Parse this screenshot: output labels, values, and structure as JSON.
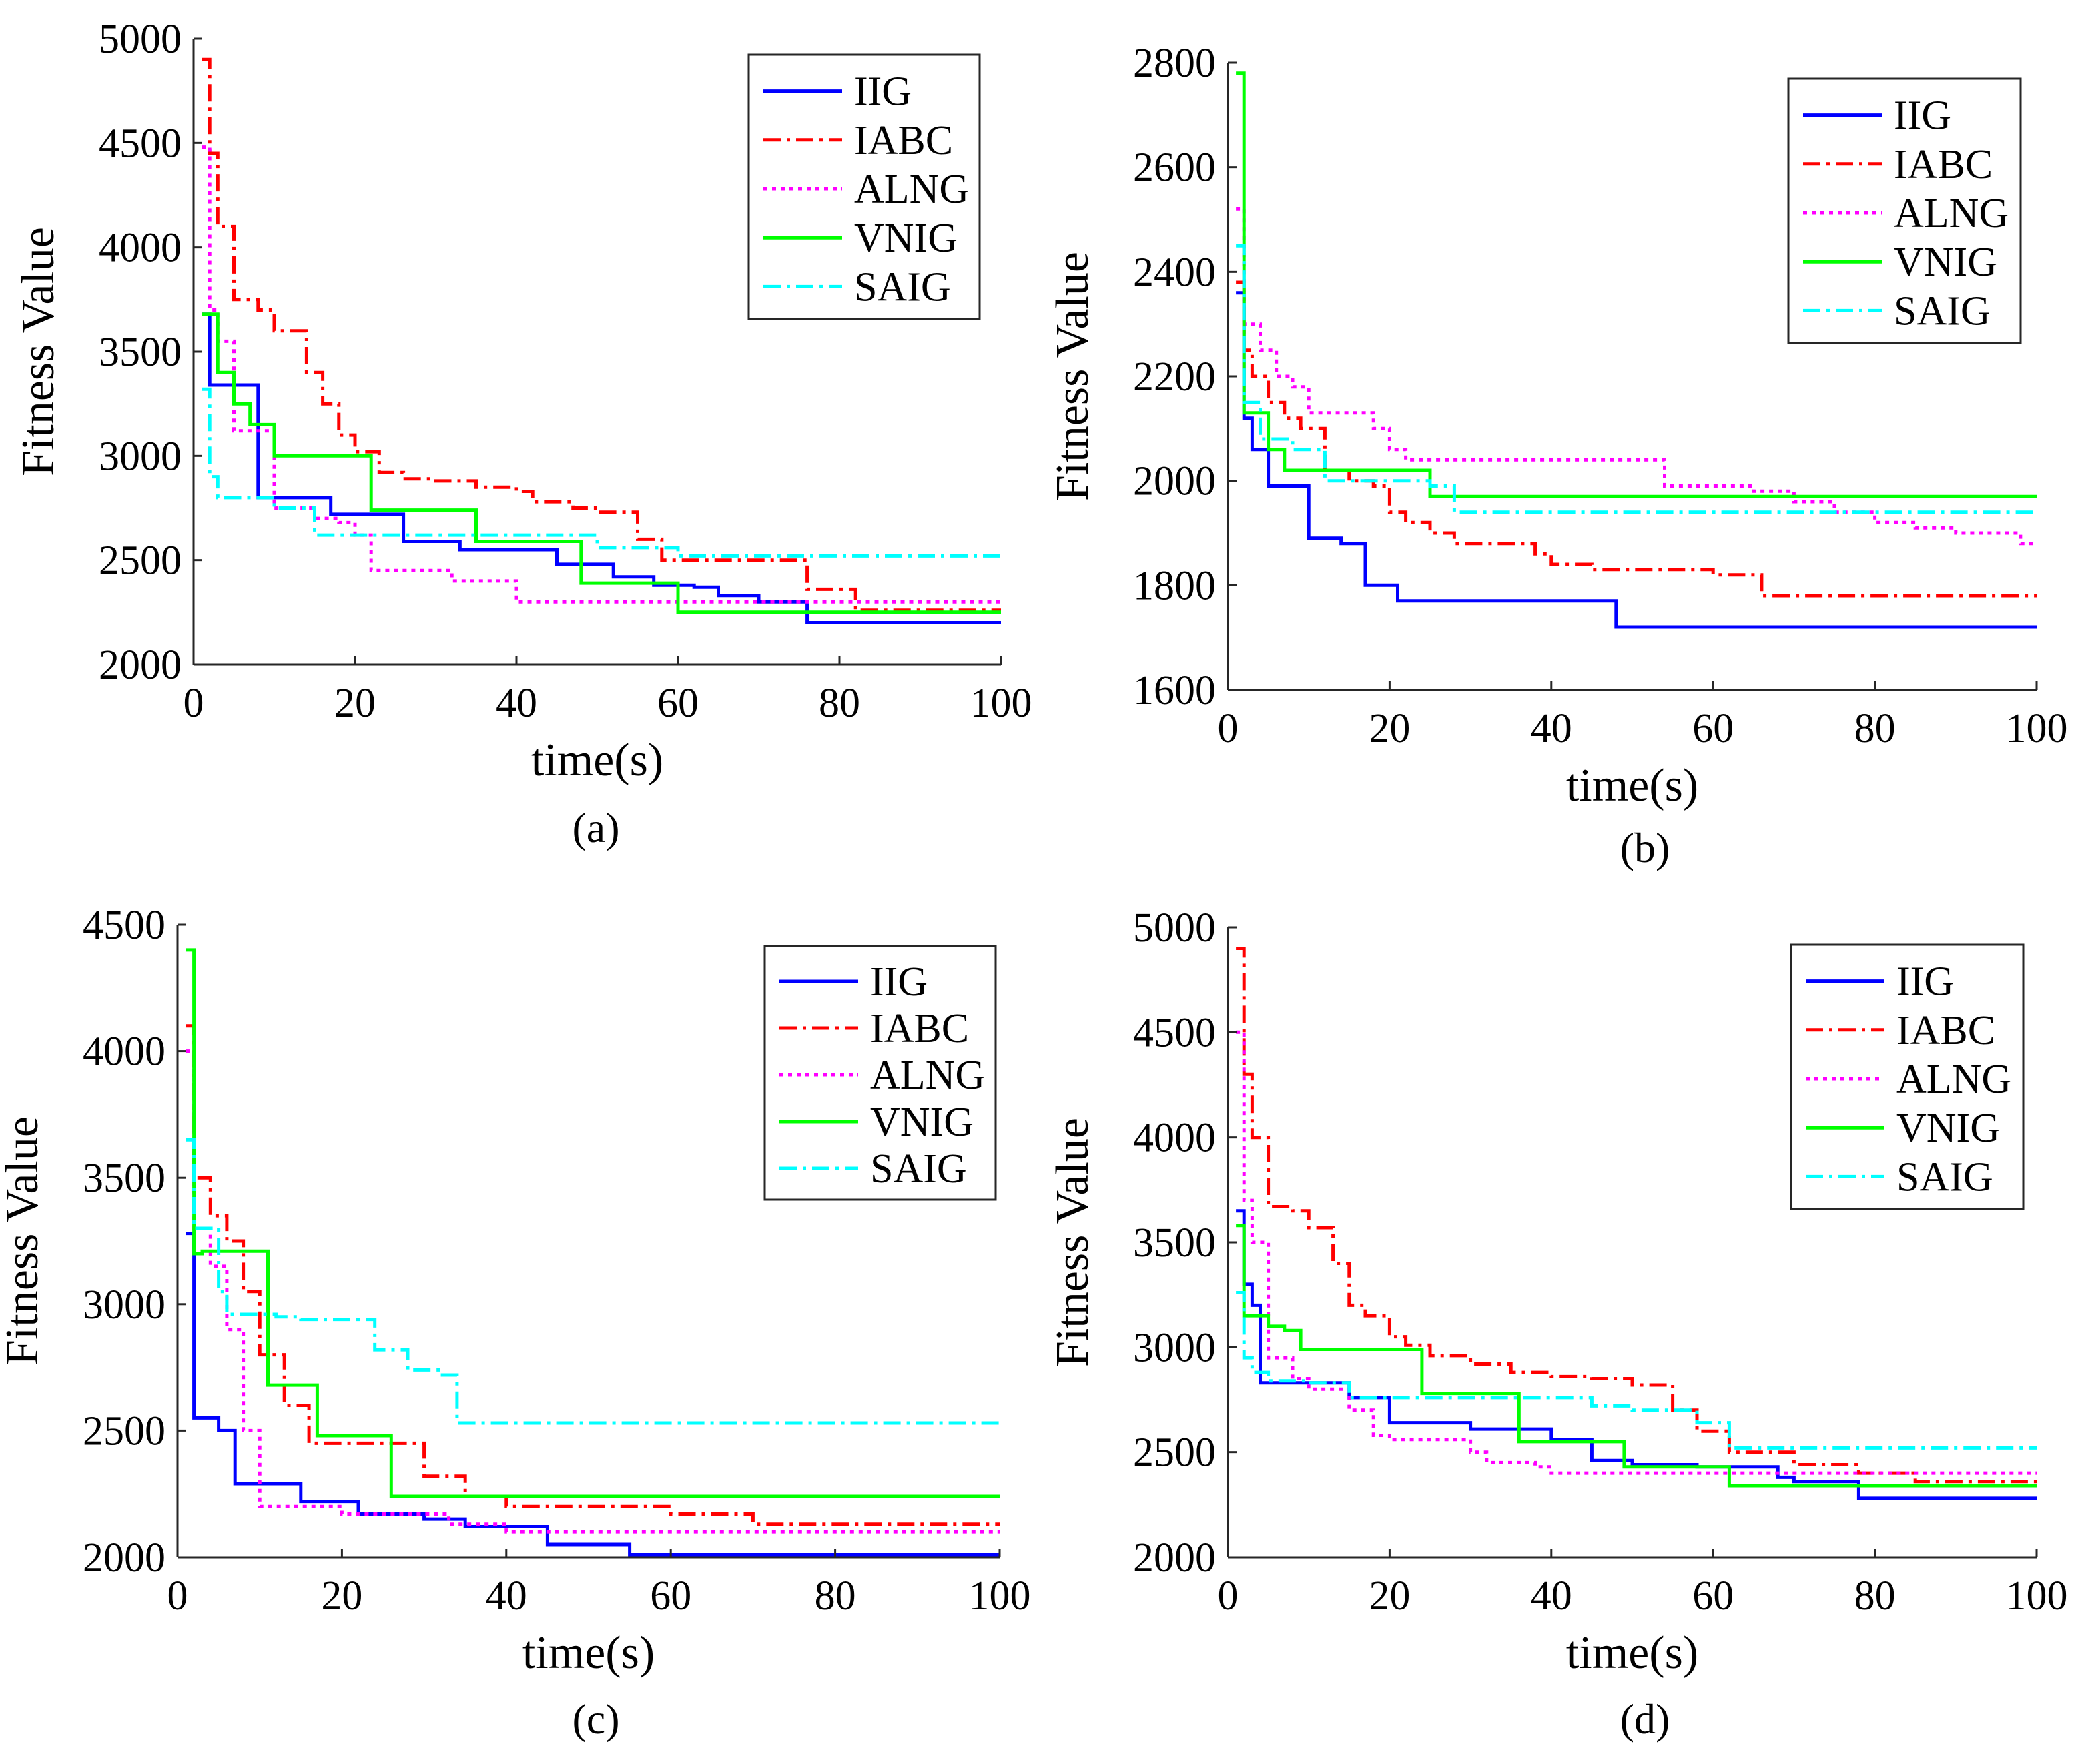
{
  "legend_labels": [
    "IIG",
    "IABC",
    "ALNG",
    "VNIG",
    "SAIG"
  ],
  "series_colors": {
    "IIG": "#0000ff",
    "IABC": "#ff0000",
    "ALNG": "#ff00ff",
    "VNIG": "#00ff00",
    "SAIG": "#00ffff"
  },
  "series_styles": {
    "IIG": "solid",
    "IABC": "dash-dot",
    "ALNG": "dotted",
    "VNIG": "solid",
    "SAIG": "dash-dot"
  },
  "chart_data": [
    {
      "type": "line",
      "panel_label": "(a)",
      "xlabel": "time(s)",
      "ylabel": "Fitness Value",
      "xlim": [
        0,
        100
      ],
      "ylim": [
        2000,
        5000
      ],
      "xticks": [
        0,
        20,
        40,
        60,
        80,
        100
      ],
      "yticks": [
        2000,
        2500,
        3000,
        3500,
        4000,
        4500,
        5000
      ],
      "legend": "top-right",
      "series": [
        {
          "name": "IIG",
          "x": [
            1,
            2,
            6,
            8,
            14,
            17,
            25,
            26,
            30,
            33,
            40,
            45,
            52,
            57,
            62,
            65,
            70,
            76,
            100
          ],
          "y": [
            3680,
            3340,
            3340,
            2800,
            2800,
            2720,
            2720,
            2590,
            2590,
            2550,
            2550,
            2480,
            2420,
            2380,
            2370,
            2330,
            2300,
            2200,
            2200
          ]
        },
        {
          "name": "IABC",
          "x": [
            1,
            2,
            3,
            5,
            8,
            10,
            14,
            16,
            18,
            20,
            23,
            26,
            30,
            35,
            40,
            42,
            47,
            50,
            55,
            58,
            61,
            65,
            70,
            75,
            76,
            80,
            82,
            85,
            100
          ],
          "y": [
            4900,
            4450,
            4100,
            3750,
            3700,
            3600,
            3400,
            3250,
            3100,
            3020,
            2920,
            2890,
            2880,
            2850,
            2830,
            2780,
            2750,
            2730,
            2600,
            2500,
            2500,
            2500,
            2500,
            2500,
            2360,
            2360,
            2260,
            2260,
            2260
          ]
        },
        {
          "name": "ALNG",
          "x": [
            1,
            2,
            3,
            5,
            8,
            10,
            15,
            18,
            20,
            22,
            28,
            32,
            37,
            40,
            60,
            100
          ],
          "y": [
            4480,
            3700,
            3550,
            3120,
            3120,
            2750,
            2700,
            2680,
            2620,
            2450,
            2450,
            2400,
            2400,
            2300,
            2300,
            2300
          ]
        },
        {
          "name": "VNIG",
          "x": [
            1,
            3,
            5,
            7,
            10,
            15,
            22,
            25,
            30,
            35,
            40,
            45,
            48,
            52,
            55,
            60,
            70,
            80,
            100
          ],
          "y": [
            3680,
            3400,
            3250,
            3150,
            3000,
            3000,
            2740,
            2740,
            2740,
            2590,
            2590,
            2590,
            2390,
            2390,
            2390,
            2250,
            2250,
            2250,
            2250
          ]
        },
        {
          "name": "SAIG",
          "x": [
            1,
            2,
            3,
            10,
            15,
            20,
            30,
            40,
            50,
            55,
            60,
            70,
            80,
            100
          ],
          "y": [
            3320,
            2900,
            2800,
            2750,
            2620,
            2620,
            2620,
            2620,
            2560,
            2560,
            2520,
            2520,
            2520,
            2520
          ]
        }
      ]
    },
    {
      "type": "line",
      "panel_label": "(b)",
      "xlabel": "time(s)",
      "ylabel": "Fitness Value",
      "xlim": [
        0,
        100
      ],
      "ylim": [
        1600,
        2800
      ],
      "xticks": [
        0,
        20,
        40,
        60,
        80,
        100
      ],
      "yticks": [
        1600,
        1800,
        2000,
        2200,
        2400,
        2600,
        2800
      ],
      "legend": "top-right",
      "series": [
        {
          "name": "IIG",
          "x": [
            1,
            2,
            3,
            5,
            8,
            10,
            14,
            17,
            20,
            21,
            30,
            40,
            48,
            60,
            80,
            100
          ],
          "y": [
            2360,
            2120,
            2060,
            1990,
            1990,
            1890,
            1880,
            1800,
            1800,
            1770,
            1770,
            1770,
            1720,
            1720,
            1720,
            1720
          ]
        },
        {
          "name": "IABC",
          "x": [
            1,
            2,
            3,
            5,
            7,
            9,
            12,
            15,
            18,
            20,
            22,
            25,
            28,
            32,
            38,
            40,
            45,
            50,
            60,
            65,
            66,
            80,
            100
          ],
          "y": [
            2380,
            2250,
            2200,
            2150,
            2120,
            2100,
            2020,
            2000,
            1990,
            1940,
            1920,
            1900,
            1880,
            1880,
            1860,
            1840,
            1830,
            1830,
            1820,
            1820,
            1780,
            1780,
            1780
          ]
        },
        {
          "name": "ALNG",
          "x": [
            1,
            2,
            4,
            6,
            8,
            10,
            15,
            18,
            20,
            22,
            30,
            40,
            50,
            54,
            60,
            65,
            70,
            75,
            80,
            85,
            90,
            95,
            98,
            100
          ],
          "y": [
            2520,
            2300,
            2250,
            2200,
            2180,
            2130,
            2130,
            2100,
            2060,
            2040,
            2040,
            2040,
            2040,
            1990,
            1990,
            1980,
            1960,
            1940,
            1920,
            1910,
            1900,
            1900,
            1880,
            1880
          ]
        },
        {
          "name": "VNIG",
          "x": [
            1,
            2,
            5,
            7,
            10,
            15,
            20,
            24,
            25,
            30,
            40,
            60,
            80,
            100
          ],
          "y": [
            2780,
            2130,
            2060,
            2020,
            2020,
            2020,
            2020,
            2020,
            1970,
            1970,
            1970,
            1970,
            1970,
            1970
          ]
        },
        {
          "name": "SAIG",
          "x": [
            1,
            2,
            4,
            8,
            12,
            15,
            20,
            25,
            28,
            30,
            40,
            60,
            80,
            100
          ],
          "y": [
            2450,
            2150,
            2080,
            2060,
            2000,
            2000,
            2000,
            1990,
            1940,
            1940,
            1940,
            1940,
            1940,
            1940
          ]
        }
      ]
    },
    {
      "type": "line",
      "panel_label": "(c)",
      "xlabel": "time(s)",
      "ylabel": "Fitness Value",
      "xlim": [
        0,
        100
      ],
      "ylim": [
        2000,
        4500
      ],
      "xticks": [
        0,
        20,
        40,
        60,
        80,
        100
      ],
      "yticks": [
        2000,
        2500,
        3000,
        3500,
        4000,
        4500
      ],
      "legend": "top-right",
      "series": [
        {
          "name": "IIG",
          "x": [
            1,
            2,
            5,
            7,
            12,
            15,
            22,
            30,
            35,
            45,
            55,
            70,
            100
          ],
          "y": [
            3280,
            2550,
            2500,
            2290,
            2290,
            2220,
            2170,
            2150,
            2120,
            2050,
            2010,
            2010,
            2010
          ]
        },
        {
          "name": "IABC",
          "x": [
            1,
            2,
            4,
            6,
            8,
            10,
            13,
            16,
            20,
            25,
            30,
            35,
            40,
            45,
            60,
            70,
            80,
            100
          ],
          "y": [
            4100,
            3500,
            3350,
            3250,
            3050,
            2800,
            2600,
            2450,
            2450,
            2450,
            2320,
            2240,
            2200,
            2200,
            2170,
            2130,
            2130,
            2130
          ]
        },
        {
          "name": "ALNG",
          "x": [
            1,
            2,
            4,
            6,
            8,
            10,
            13,
            18,
            20,
            25,
            33,
            40,
            60,
            80,
            100
          ],
          "y": [
            4000,
            3300,
            3150,
            2900,
            2500,
            2200,
            2200,
            2200,
            2170,
            2170,
            2130,
            2100,
            2100,
            2100,
            2100
          ]
        },
        {
          "name": "VNIG",
          "x": [
            1,
            2,
            3,
            10,
            11,
            16,
            17,
            25,
            26,
            30,
            40,
            60,
            80,
            100
          ],
          "y": [
            4400,
            3200,
            3210,
            3210,
            2680,
            2680,
            2480,
            2480,
            2240,
            2240,
            2240,
            2240,
            2240,
            2240
          ]
        },
        {
          "name": "SAIG",
          "x": [
            1,
            2,
            5,
            6,
            12,
            15,
            22,
            24,
            28,
            32,
            34,
            40,
            60,
            80,
            100
          ],
          "y": [
            3650,
            3300,
            3050,
            2960,
            2950,
            2940,
            2940,
            2820,
            2740,
            2720,
            2530,
            2530,
            2530,
            2530,
            2530
          ]
        }
      ]
    },
    {
      "type": "line",
      "panel_label": "(d)",
      "xlabel": "time(s)",
      "ylabel": "Fitness Value",
      "xlim": [
        0,
        100
      ],
      "ylim": [
        2000,
        5000
      ],
      "xticks": [
        0,
        20,
        40,
        60,
        80,
        100
      ],
      "yticks": [
        2000,
        2500,
        3000,
        3500,
        4000,
        4500,
        5000
      ],
      "legend": "top-right",
      "series": [
        {
          "name": "IIG",
          "x": [
            1,
            2,
            3,
            4,
            10,
            15,
            20,
            30,
            35,
            40,
            45,
            50,
            58,
            62,
            68,
            70,
            78,
            80,
            100
          ],
          "y": [
            3650,
            3300,
            3200,
            2830,
            2830,
            2760,
            2640,
            2610,
            2610,
            2560,
            2460,
            2440,
            2430,
            2430,
            2380,
            2360,
            2280,
            2280,
            2280
          ]
        },
        {
          "name": "IABC",
          "x": [
            1,
            2,
            3,
            5,
            8,
            10,
            13,
            15,
            17,
            20,
            22,
            25,
            30,
            35,
            40,
            45,
            50,
            53,
            55,
            58,
            62,
            70,
            78,
            85,
            100
          ],
          "y": [
            4900,
            4300,
            4000,
            3670,
            3650,
            3570,
            3400,
            3200,
            3150,
            3050,
            3010,
            2960,
            2920,
            2880,
            2860,
            2850,
            2820,
            2820,
            2700,
            2600,
            2500,
            2440,
            2400,
            2360,
            2360
          ]
        },
        {
          "name": "ALNG",
          "x": [
            1,
            2,
            3,
            5,
            8,
            10,
            15,
            18,
            20,
            25,
            30,
            32,
            38,
            40,
            60,
            100
          ],
          "y": [
            4500,
            3700,
            3500,
            2950,
            2850,
            2800,
            2700,
            2580,
            2560,
            2560,
            2500,
            2450,
            2430,
            2400,
            2400,
            2400
          ]
        },
        {
          "name": "VNIG",
          "x": [
            1,
            2,
            5,
            7,
            9,
            15,
            20,
            23,
            24,
            30,
            35,
            36,
            40,
            48,
            49,
            55,
            60,
            62,
            80,
            100
          ],
          "y": [
            3580,
            3150,
            3100,
            3080,
            2990,
            2990,
            2990,
            2990,
            2780,
            2780,
            2780,
            2550,
            2550,
            2550,
            2430,
            2430,
            2430,
            2340,
            2340,
            2340
          ]
        },
        {
          "name": "SAIG",
          "x": [
            1,
            2,
            3,
            5,
            10,
            15,
            20,
            30,
            40,
            45,
            50,
            55,
            58,
            62,
            70,
            80,
            100
          ],
          "y": [
            3260,
            2950,
            2880,
            2840,
            2830,
            2760,
            2760,
            2760,
            2760,
            2720,
            2700,
            2700,
            2640,
            2520,
            2520,
            2520,
            2520
          ]
        }
      ]
    }
  ]
}
